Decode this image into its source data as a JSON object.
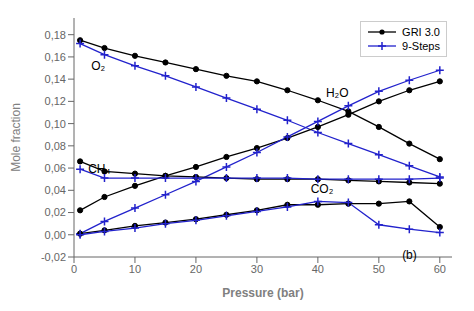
{
  "chart_data": {
    "type": "line",
    "xlabel": "Pressure (bar)",
    "ylabel": "Mole fraction",
    "x": [
      1,
      5,
      10,
      15,
      20,
      25,
      30,
      35,
      40,
      45,
      50,
      55,
      60
    ],
    "xlim": [
      0,
      62
    ],
    "xticks": [
      0,
      10,
      20,
      30,
      40,
      50,
      60
    ],
    "ylim": [
      -0.02,
      0.195
    ],
    "yticks": [
      {
        "value": -0.02,
        "label": "-0,02"
      },
      {
        "value": 0.0,
        "label": "0,00"
      },
      {
        "value": 0.02,
        "label": "0,02"
      },
      {
        "value": 0.04,
        "label": "0,04"
      },
      {
        "value": 0.06,
        "label": "0,06"
      },
      {
        "value": 0.08,
        "label": "0,08"
      },
      {
        "value": 0.1,
        "label": "0,10"
      },
      {
        "value": 0.12,
        "label": "0,12"
      },
      {
        "value": 0.14,
        "label": "0,14"
      },
      {
        "value": 0.16,
        "label": "0,16"
      },
      {
        "value": 0.18,
        "label": "0,18"
      }
    ],
    "grid": false,
    "legend": "upper right",
    "series": [
      {
        "name": "GRI 3.0",
        "color": "#000000",
        "marker": "o",
        "values": [
          0.175,
          0.168,
          0.161,
          0.155,
          0.149,
          0.143,
          0.138,
          0.13,
          0.121,
          0.111,
          0.097,
          0.082,
          0.068
        ]
      },
      {
        "name": "9-Steps",
        "color": "#2222cc",
        "marker": "+",
        "values": [
          0.172,
          0.162,
          0.152,
          0.143,
          0.133,
          0.123,
          0.113,
          0.103,
          0.092,
          0.082,
          0.072,
          0.062,
          0.052
        ]
      },
      {
        "color": "#000000",
        "marker": "o",
        "values": [
          0.022,
          0.034,
          0.044,
          0.053,
          0.061,
          0.07,
          0.078,
          0.087,
          0.097,
          0.108,
          0.12,
          0.13,
          0.138
        ]
      },
      {
        "color": "#2222cc",
        "marker": "+",
        "values": [
          0.001,
          0.012,
          0.024,
          0.036,
          0.048,
          0.061,
          0.074,
          0.088,
          0.102,
          0.116,
          0.129,
          0.139,
          0.148
        ]
      },
      {
        "color": "#000000",
        "marker": "o",
        "values": [
          0.066,
          0.057,
          0.055,
          0.053,
          0.052,
          0.051,
          0.05,
          0.05,
          0.05,
          0.049,
          0.048,
          0.047,
          0.046
        ]
      },
      {
        "color": "#2222cc",
        "marker": "+",
        "values": [
          0.059,
          0.051,
          0.051,
          0.051,
          0.051,
          0.051,
          0.051,
          0.051,
          0.05,
          0.05,
          0.05,
          0.05,
          0.051
        ]
      },
      {
        "color": "#000000",
        "marker": "o",
        "values": [
          0.001,
          0.004,
          0.008,
          0.011,
          0.014,
          0.018,
          0.022,
          0.027,
          0.027,
          0.028,
          0.028,
          0.03,
          0.007
        ]
      },
      {
        "color": "#2222cc",
        "marker": "+",
        "values": [
          0.0,
          0.003,
          0.006,
          0.01,
          0.013,
          0.017,
          0.021,
          0.025,
          0.03,
          0.029,
          0.009,
          0.005,
          0.002
        ]
      }
    ],
    "annotations": [
      {
        "text": "O₂",
        "x": 2.0,
        "y": 0.152
      },
      {
        "text": "H₂O",
        "x": 40.5,
        "y": 0.128
      },
      {
        "text": "CH₄",
        "x": 1.5,
        "y": 0.059
      },
      {
        "text": "CO₂",
        "x": 38.0,
        "y": 0.041
      },
      {
        "text": "(b)",
        "x": 53.0,
        "y": -0.018
      }
    ]
  }
}
